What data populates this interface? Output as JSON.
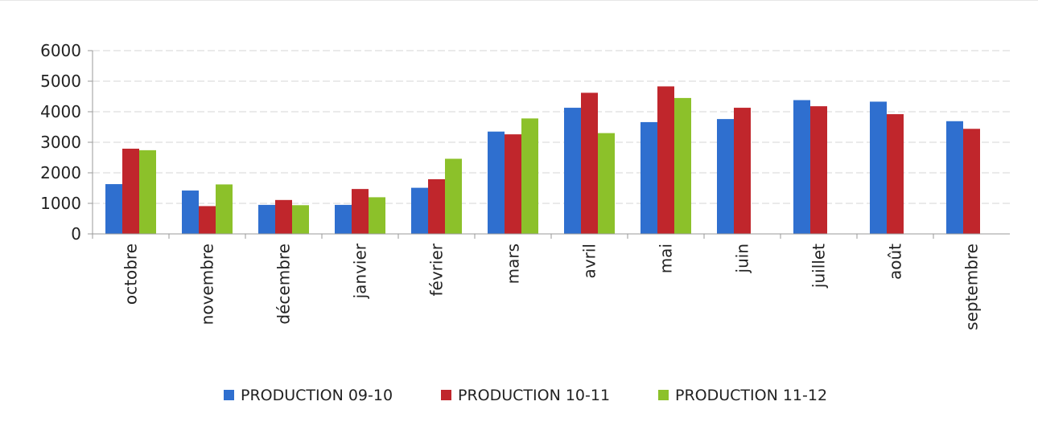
{
  "chart_data": {
    "type": "bar",
    "categories": [
      "octobre",
      "novembre",
      "décembre",
      "janvier",
      "février",
      "mars",
      "avril",
      "mai",
      "juin",
      "juillet",
      "août",
      "septembre"
    ],
    "series": [
      {
        "name": "PRODUCTION 09-10",
        "color": "#2f6fcf",
        "values": [
          1630,
          1420,
          950,
          950,
          1510,
          3350,
          4130,
          3660,
          3760,
          4380,
          4330,
          3690
        ]
      },
      {
        "name": "PRODUCTION 10-11",
        "color": "#c0262c",
        "values": [
          2790,
          910,
          1110,
          1470,
          1790,
          3260,
          4620,
          4830,
          4130,
          4180,
          3920,
          3440
        ]
      },
      {
        "name": "PRODUCTION 11-12",
        "color": "#8cc12a",
        "values": [
          2740,
          1620,
          940,
          1200,
          2460,
          3780,
          3300,
          4450,
          null,
          null,
          null,
          null
        ]
      }
    ],
    "title": "",
    "xlabel": "",
    "ylabel": "",
    "ylim": [
      0,
      6000
    ],
    "yticks": [
      "0",
      "1000",
      "2000",
      "3000",
      "4000",
      "5000",
      "6000"
    ],
    "grid": true,
    "legend_position": "bottom"
  }
}
